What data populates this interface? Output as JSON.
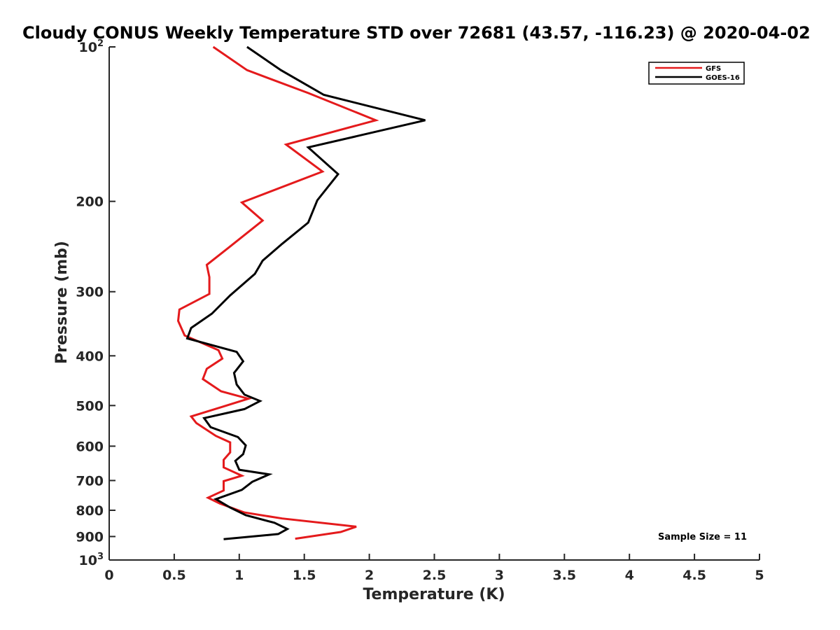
{
  "chart_data": {
    "type": "line",
    "title": "Cloudy CONUS Weekly Temperature STD over 72681 (43.57, -116.23) @ 2020-04-02",
    "xlabel": "Temperature (K)",
    "ylabel": "Pressure (mb)",
    "xlim": [
      0,
      5
    ],
    "ylim": [
      100,
      1000
    ],
    "y_scale": "log",
    "y_reversed": true,
    "x_ticks": [
      {
        "value": 0,
        "label": "0"
      },
      {
        "value": 0.5,
        "label": "0.5"
      },
      {
        "value": 1,
        "label": "1"
      },
      {
        "value": 1.5,
        "label": "1.5"
      },
      {
        "value": 2,
        "label": "2"
      },
      {
        "value": 2.5,
        "label": "2.5"
      },
      {
        "value": 3,
        "label": "3"
      },
      {
        "value": 3.5,
        "label": "3.5"
      },
      {
        "value": 4,
        "label": "4"
      },
      {
        "value": 4.5,
        "label": "4.5"
      },
      {
        "value": 5,
        "label": "5"
      }
    ],
    "y_ticks": [
      {
        "value": 100,
        "base": "10",
        "exp": "2"
      },
      {
        "value": 200,
        "label": "200"
      },
      {
        "value": 300,
        "label": "300"
      },
      {
        "value": 400,
        "label": "400"
      },
      {
        "value": 500,
        "label": "500"
      },
      {
        "value": 600,
        "label": "600"
      },
      {
        "value": 700,
        "label": "700"
      },
      {
        "value": 800,
        "label": "800"
      },
      {
        "value": 900,
        "label": "900"
      },
      {
        "value": 1000,
        "base": "10",
        "exp": "3"
      }
    ],
    "grid": false,
    "legend_position": "top-right",
    "annotation": "Sample Size = 11",
    "series": [
      {
        "name": "GFS",
        "color": "#e41a1c",
        "points": [
          [
            0.8,
            100
          ],
          [
            1.06,
            111
          ],
          [
            1.53,
            123
          ],
          [
            2.05,
            139
          ],
          [
            1.36,
            155
          ],
          [
            1.64,
            175
          ],
          [
            1.02,
            201
          ],
          [
            1.18,
            218
          ],
          [
            0.92,
            246
          ],
          [
            0.75,
            266
          ],
          [
            0.77,
            281
          ],
          [
            0.77,
            303
          ],
          [
            0.54,
            325
          ],
          [
            0.53,
            342
          ],
          [
            0.58,
            365
          ],
          [
            0.84,
            390
          ],
          [
            0.87,
            405
          ],
          [
            0.75,
            424
          ],
          [
            0.72,
            444
          ],
          [
            0.86,
            469
          ],
          [
            1.07,
            485
          ],
          [
            0.87,
            503
          ],
          [
            0.63,
            525
          ],
          [
            0.67,
            541
          ],
          [
            0.82,
            573
          ],
          [
            0.93,
            590
          ],
          [
            0.93,
            617
          ],
          [
            0.88,
            638
          ],
          [
            0.88,
            660
          ],
          [
            1.02,
            685
          ],
          [
            0.88,
            702
          ],
          [
            0.88,
            732
          ],
          [
            0.76,
            756
          ],
          [
            0.85,
            776
          ],
          [
            1.04,
            808
          ],
          [
            1.33,
            830
          ],
          [
            1.9,
            861
          ],
          [
            1.78,
            882
          ],
          [
            1.43,
            909
          ]
        ]
      },
      {
        "name": "GOES-16",
        "color": "#000000",
        "points": [
          [
            1.06,
            100
          ],
          [
            1.32,
            111
          ],
          [
            1.65,
            124
          ],
          [
            2.43,
            139
          ],
          [
            1.53,
            157
          ],
          [
            1.76,
            177
          ],
          [
            1.6,
            199
          ],
          [
            1.53,
            220
          ],
          [
            1.33,
            242
          ],
          [
            1.18,
            261
          ],
          [
            1.12,
            277
          ],
          [
            0.93,
            305
          ],
          [
            0.79,
            331
          ],
          [
            0.63,
            353
          ],
          [
            0.6,
            370
          ],
          [
            0.98,
            393
          ],
          [
            1.03,
            410
          ],
          [
            0.96,
            432
          ],
          [
            0.98,
            455
          ],
          [
            1.04,
            476
          ],
          [
            1.16,
            490
          ],
          [
            1.04,
            508
          ],
          [
            0.73,
            529
          ],
          [
            0.78,
            551
          ],
          [
            0.99,
            576
          ],
          [
            1.05,
            598
          ],
          [
            1.03,
            622
          ],
          [
            0.97,
            641
          ],
          [
            1.0,
            667
          ],
          [
            1.23,
            681
          ],
          [
            1.1,
            704
          ],
          [
            1.02,
            730
          ],
          [
            0.82,
            761
          ],
          [
            0.93,
            790
          ],
          [
            1.05,
            818
          ],
          [
            1.27,
            846
          ],
          [
            1.37,
            870
          ],
          [
            1.3,
            890
          ],
          [
            0.88,
            911
          ]
        ]
      }
    ]
  }
}
